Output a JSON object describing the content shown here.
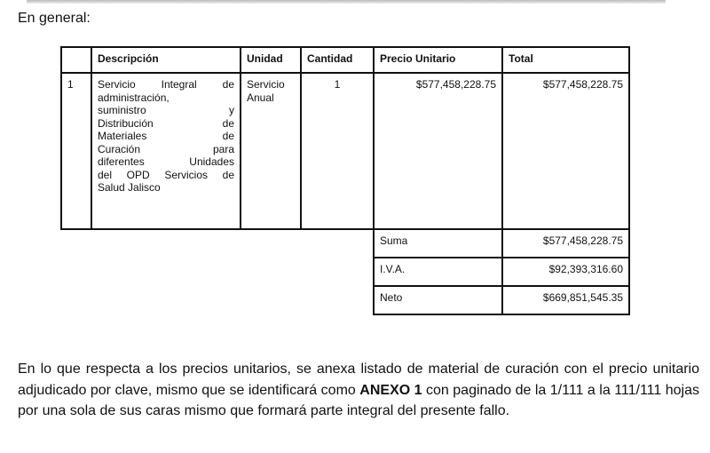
{
  "heading": "En general:",
  "table": {
    "headers": [
      "",
      "Descripción",
      "Unidad",
      "Cantidad",
      "Precio Unitario",
      "Total"
    ],
    "rows": [
      {
        "num": "1",
        "description_lines": [
          "Servicio Integral de",
          "administración,",
          "suministro y",
          "Distribución de",
          "Materiales de",
          "Curación para",
          "diferentes Unidades",
          "del OPD Servicios de",
          "Salud Jalisco"
        ],
        "unit_lines": [
          "Servicio",
          "Anual"
        ],
        "quantity": "1",
        "unit_price": "$577,458,228.75",
        "total": "$577,458,228.75"
      }
    ],
    "summary": [
      {
        "label": "Suma",
        "value": "$577,458,228.75"
      },
      {
        "label": "I.V.A.",
        "value": "$92,393,316.60"
      },
      {
        "label": "Neto",
        "value": "$669,851,545.35"
      }
    ]
  },
  "paragraph": {
    "before": "En lo que respecta a los precios unitarios, se anexa listado de material de curación con el precio unitario adjudicado por clave, mismo que se identificará como ",
    "bold": "ANEXO 1",
    "after": " con paginado de la 1/111 a la 111/111 hojas por una sola de sus caras mismo que formará parte integral del presente fallo."
  }
}
